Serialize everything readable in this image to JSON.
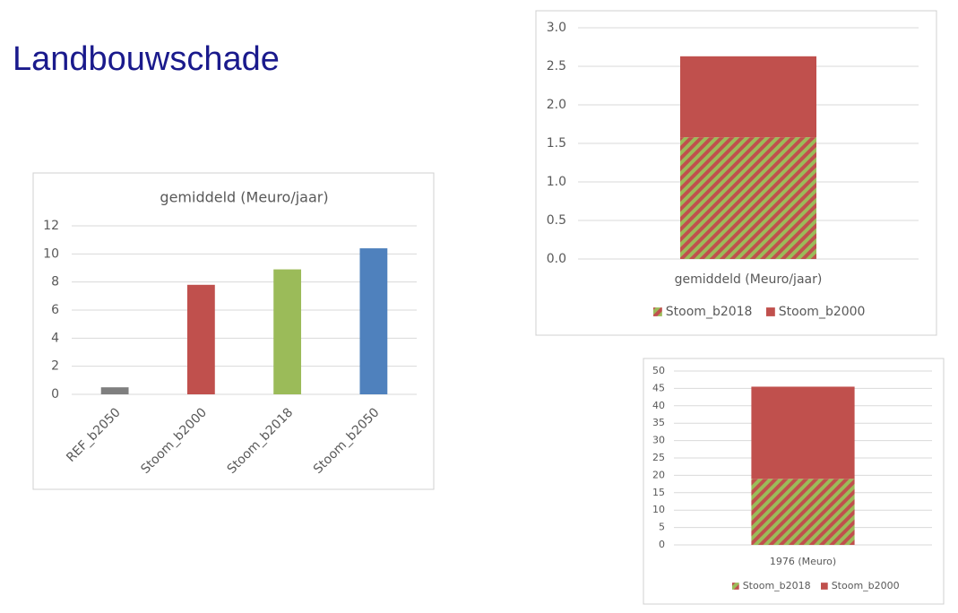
{
  "title": "Landbouwschade",
  "chart_data": [
    {
      "type": "bar",
      "title": "gemiddeld (Meuro/jaar)",
      "categories": [
        "REF_b2050",
        "Stoom_b2000",
        "Stoom_b2018",
        "Stoom_b2050"
      ],
      "values": [
        0.5,
        7.8,
        8.9,
        10.4
      ],
      "colors": [
        "#7f7f7f",
        "#c0504d",
        "#9bbb59",
        "#4f81bd"
      ],
      "ylim": [
        0,
        12
      ],
      "yticks": [
        0,
        2,
        4,
        6,
        8,
        10,
        12
      ],
      "grid": true
    },
    {
      "type": "stacked_bar",
      "categories": [
        "gemiddeld (Meuro/jaar)"
      ],
      "series": [
        {
          "name": "Stoom_b2018",
          "color": "#9bbb59",
          "pattern": "hatch",
          "values": [
            1.58
          ]
        },
        {
          "name": "Stoom_b2000",
          "color": "#c0504d",
          "values": [
            1.05
          ]
        }
      ],
      "ylim": [
        0,
        3
      ],
      "yticks": [
        {
          "value": 0,
          "label": "0.0"
        },
        0.5,
        {
          "value": 1,
          "label": "1.0"
        },
        1.5,
        {
          "value": 2,
          "label": "2.0"
        },
        2.5,
        {
          "value": 3,
          "label": "3.0"
        }
      ],
      "grid": true,
      "legend": "bottom"
    },
    {
      "type": "stacked_bar",
      "categories": [
        "1976 (Meuro)"
      ],
      "series": [
        {
          "name": "Stoom_b2018",
          "color": "#9bbb59",
          "pattern": "hatch",
          "values": [
            19
          ]
        },
        {
          "name": "Stoom_b2000",
          "color": "#c0504d",
          "values": [
            26.5
          ]
        }
      ],
      "ylim": [
        0,
        50
      ],
      "yticks": [
        0,
        5,
        10,
        15,
        20,
        25,
        30,
        35,
        40,
        45,
        50
      ],
      "grid": true,
      "legend": "bottom"
    }
  ]
}
